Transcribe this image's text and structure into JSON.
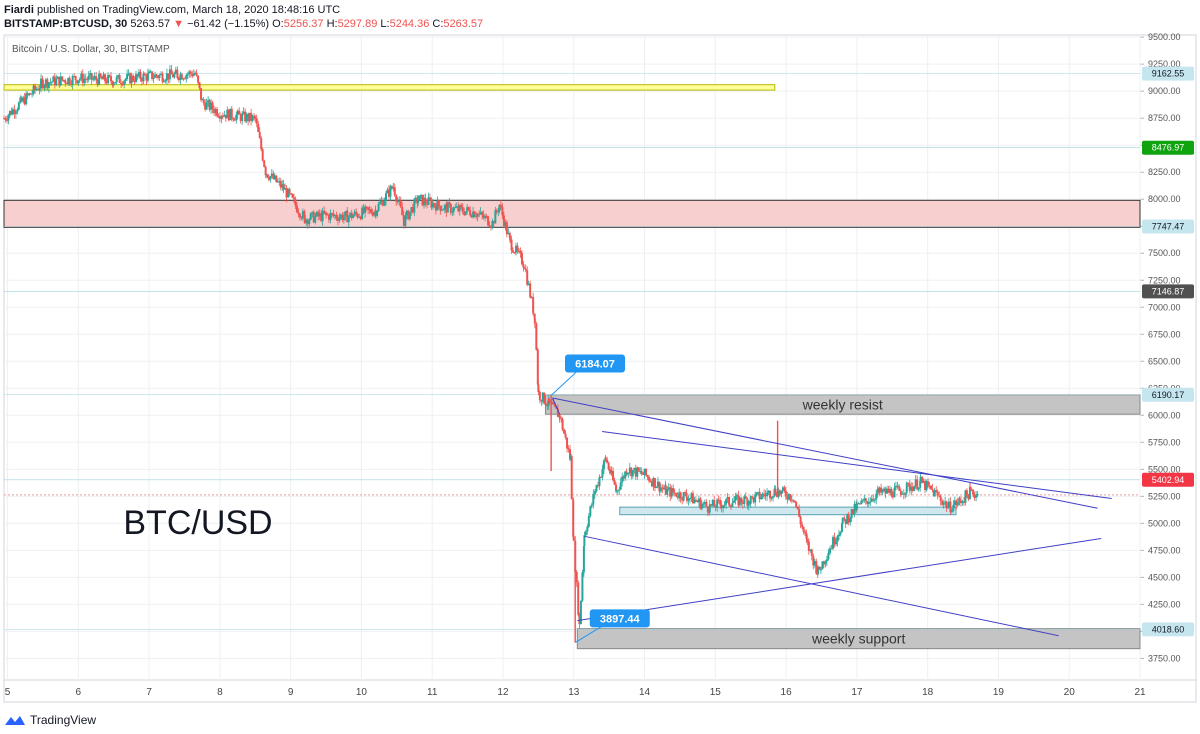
{
  "header": {
    "author": "Fiardi",
    "published": "published on TradingView.com, March 18, 2020 18:48:16 UTC",
    "symbol": "BITSTAMP:BTCUSD, 30",
    "last": "5263.57",
    "change": "−61.42 (−1.15%)",
    "o_label": "O:",
    "o": "5256.37",
    "h_label": "H:",
    "h": "5297.89",
    "l_label": "L:",
    "l": "5244.36",
    "c_label": "C:",
    "c": "5263.57"
  },
  "footer": {
    "brand": "TradingView",
    "logo": "tradingview-logo-icon"
  },
  "colors": {
    "candle_up": "#26a69a",
    "candle_down": "#ef5350",
    "trendline": "#3f3fc6",
    "yellow_zone": "#ffff99",
    "red_zone": "#f7cfcf",
    "grey_zone": "#c8c8c8",
    "support_box": "#cfe8f0",
    "label_blue": "#2196f3"
  },
  "chart_data": {
    "type": "candlestick",
    "title": "Bitcoin / U.S. Dollar, 30, BITSTAMP",
    "watermark": "BTC/USD",
    "x_ticks": [
      "5",
      "6",
      "7",
      "8",
      "9",
      "10",
      "11",
      "12",
      "13",
      "14",
      "15",
      "16",
      "17",
      "18",
      "19",
      "20",
      "21"
    ],
    "y_ticks": [
      "9500.00",
      "9250.00",
      "9000.00",
      "8750.00",
      "8500.00",
      "8250.00",
      "8000.00",
      "7750.00",
      "7500.00",
      "7250.00",
      "7000.00",
      "6750.00",
      "6500.00",
      "6250.00",
      "6000.00",
      "5750.00",
      "5500.00",
      "5250.00",
      "5000.00",
      "4750.00",
      "4500.00",
      "4250.00",
      "4000.00",
      "3750.00"
    ],
    "xlim": [
      4.95,
      21
    ],
    "ylim": [
      3550,
      9520
    ],
    "price_path": [
      [
        4.95,
        8750
      ],
      [
        5.2,
        8900
      ],
      [
        5.5,
        9080
      ],
      [
        6.0,
        9120
      ],
      [
        6.5,
        9100
      ],
      [
        7.0,
        9140
      ],
      [
        7.4,
        9150
      ],
      [
        7.65,
        9170
      ],
      [
        7.75,
        8900
      ],
      [
        8.0,
        8800
      ],
      [
        8.5,
        8740
      ],
      [
        8.65,
        8250
      ],
      [
        8.9,
        8100
      ],
      [
        9.2,
        7820
      ],
      [
        9.5,
        7850
      ],
      [
        9.8,
        7840
      ],
      [
        10.2,
        7900
      ],
      [
        10.45,
        8120
      ],
      [
        10.6,
        7800
      ],
      [
        10.8,
        8000
      ],
      [
        11.2,
        7920
      ],
      [
        11.6,
        7880
      ],
      [
        11.85,
        7780
      ],
      [
        11.95,
        7950
      ],
      [
        12.1,
        7600
      ],
      [
        12.3,
        7400
      ],
      [
        12.45,
        6900
      ],
      [
        12.5,
        6200
      ],
      [
        12.65,
        6100
      ],
      [
        12.8,
        6000
      ],
      [
        12.95,
        5600
      ],
      [
        13.0,
        4800
      ],
      [
        13.08,
        4050
      ],
      [
        13.15,
        4900
      ],
      [
        13.3,
        5300
      ],
      [
        13.45,
        5600
      ],
      [
        13.6,
        5300
      ],
      [
        13.75,
        5500
      ],
      [
        14.0,
        5450
      ],
      [
        14.3,
        5300
      ],
      [
        14.6,
        5250
      ],
      [
        14.9,
        5150
      ],
      [
        15.2,
        5200
      ],
      [
        15.5,
        5220
      ],
      [
        15.85,
        5300
      ],
      [
        16.1,
        5250
      ],
      [
        16.3,
        4800
      ],
      [
        16.45,
        4550
      ],
      [
        16.6,
        4750
      ],
      [
        16.8,
        5000
      ],
      [
        17.0,
        5150
      ],
      [
        17.3,
        5280
      ],
      [
        17.6,
        5300
      ],
      [
        17.9,
        5380
      ],
      [
        18.1,
        5280
      ],
      [
        18.3,
        5150
      ],
      [
        18.45,
        5200
      ],
      [
        18.6,
        5290
      ],
      [
        18.72,
        5263
      ]
    ],
    "spikes": [
      [
        15.88,
        5950
      ],
      [
        12.68,
        6184
      ],
      [
        13.02,
        3897
      ]
    ],
    "price_labels": [
      {
        "value": 9162.55,
        "text": "9162.55",
        "bg": "#c6e6ef",
        "fg": "#131722"
      },
      {
        "value": 8476.97,
        "text": "8476.97",
        "bg": "#0fa30f",
        "fg": "#ffffff"
      },
      {
        "value": 7747.47,
        "text": "7747.47",
        "bg": "#c6e6ef",
        "fg": "#131722"
      },
      {
        "value": 7146.87,
        "text": "7146.87",
        "bg": "#505050",
        "fg": "#ffffff"
      },
      {
        "value": 6190.17,
        "text": "6190.17",
        "bg": "#c6e6ef",
        "fg": "#131722"
      },
      {
        "value": 5402.94,
        "text": "5402.94",
        "bg": "#f23645",
        "fg": "#ffffff"
      },
      {
        "value": 4018.6,
        "text": "4018.60",
        "bg": "#c6e6ef",
        "fg": "#131722"
      }
    ],
    "last_price_line": 5263.57,
    "zones": [
      {
        "name": "yellow-zone",
        "x": [
          4.95,
          15.84
        ],
        "y": [
          9010,
          9060
        ],
        "fill": "#ffff99",
        "stroke": "#b8b800"
      },
      {
        "name": "red-zone",
        "x": [
          4.95,
          21
        ],
        "y": [
          7740,
          7990
        ],
        "fill": "#f7cfcf",
        "stroke": "#333333"
      },
      {
        "name": "weekly-resist-zone",
        "x": [
          12.6,
          21
        ],
        "y": [
          6010,
          6190
        ],
        "fill": "#c4c4c4",
        "stroke": "#888888",
        "label": "weekly resist"
      },
      {
        "name": "weekly-support-zone",
        "x": [
          13.05,
          21
        ],
        "y": [
          3840,
          4025
        ],
        "fill": "#c4c4c4",
        "stroke": "#888888",
        "label": "weekly support"
      },
      {
        "name": "support-box",
        "x": [
          13.65,
          18.4
        ],
        "y": [
          5080,
          5150
        ],
        "fill": "#cfe8f0",
        "stroke": "#5b9fb3"
      }
    ],
    "trendlines": [
      {
        "from": [
          12.7,
          6160
        ],
        "to": [
          20.4,
          5140
        ]
      },
      {
        "from": [
          13.4,
          5850
        ],
        "to": [
          20.6,
          5230
        ]
      },
      {
        "from": [
          13.15,
          4880
        ],
        "to": [
          19.85,
          3960
        ]
      },
      {
        "from": [
          13.05,
          4100
        ],
        "to": [
          20.45,
          4860
        ]
      },
      {
        "from": [
          12.7,
          6160
        ],
        "to": [
          12.8,
          6010
        ]
      }
    ],
    "callouts": [
      {
        "text": "6184.07",
        "x": 12.68,
        "y": 6184,
        "box_x": 13.3,
        "box_y": 6480
      },
      {
        "text": "3897.44",
        "x": 13.02,
        "y": 3897,
        "box_x": 13.65,
        "box_y": 4120
      }
    ],
    "grid": true
  }
}
